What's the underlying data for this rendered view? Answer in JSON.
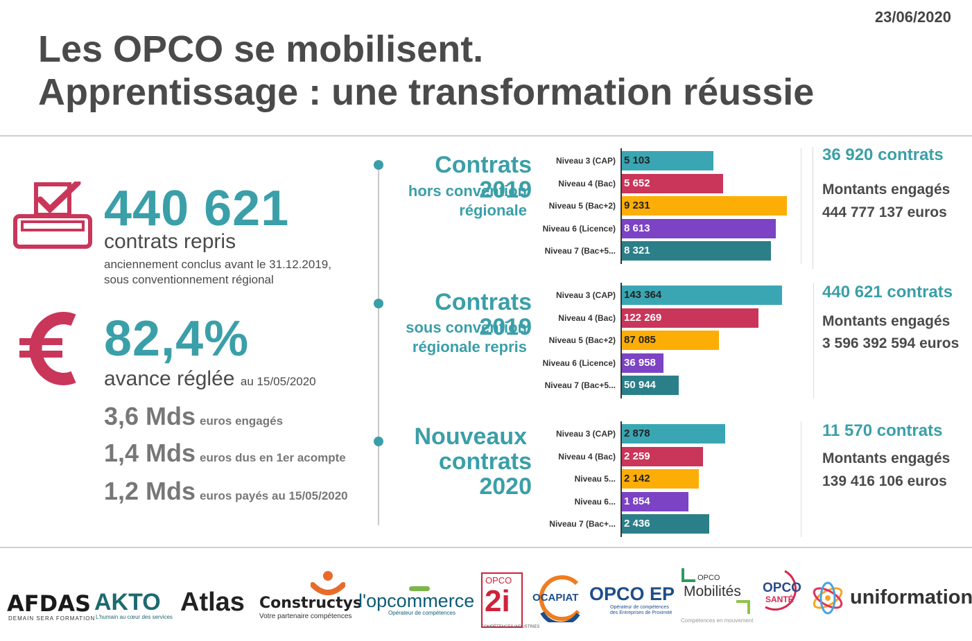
{
  "date": "23/06/2020",
  "title_line1": "Les OPCO se mobilisent.",
  "title_line2": "Apprentissage : une transformation réussie",
  "kpis": {
    "contracts_value": "440 621",
    "contracts_label": "contrats repris",
    "contracts_note1": "anciennement conclus avant le 31.12.2019,",
    "contracts_note2": "sous conventionnement régional",
    "advance_value": "82,4%",
    "advance_label": "avance réglée",
    "advance_date": "au 15/05/2020",
    "mds": [
      {
        "value": "3,6 Mds",
        "label": "euros engagés"
      },
      {
        "value": "1,4 Mds",
        "label": "euros dus en 1er acompte"
      },
      {
        "value": "1,2 Mds",
        "label": "euros payés au 15/05/2020"
      }
    ]
  },
  "sections": [
    {
      "head": "Contrats 2019",
      "sub1": "hors convention",
      "sub2": "régionale"
    },
    {
      "head": "Contrats 2019",
      "sub1": "sous convention",
      "sub2": "régionale repris"
    },
    {
      "head1": "Nouveaux",
      "head2": "contrats 2020"
    }
  ],
  "stats": [
    {
      "count": "36 920 contrats",
      "label": "Montants engagés",
      "amount": "444 777 137 euros"
    },
    {
      "count": "440 621 contrats",
      "label": "Montants engagés",
      "amount": "3 596 392 594 euros"
    },
    {
      "count": "11 570 contrats",
      "label": "Montants engagés",
      "amount": "139 416 106 euros"
    }
  ],
  "colors": {
    "teal": "#3aa6b3",
    "red": "#c9365a",
    "orange": "#fdae06",
    "purple": "#7c43c4",
    "darkteal": "#2b7f89"
  },
  "chart_data": [
    {
      "type": "bar",
      "orientation": "horizontal",
      "categories": [
        "Niveau 3 (CAP)",
        "Niveau 4 (Bac)",
        "Niveau 5 (Bac+2)",
        "Niveau 6 (Licence)",
        "Niveau 7 (Bac+5..."
      ],
      "values": [
        5103,
        5652,
        9231,
        8613,
        8321
      ],
      "value_labels": [
        "5 103",
        "5 652",
        "9 231",
        "8 613",
        "8 321"
      ],
      "xlim": [
        0,
        10000
      ]
    },
    {
      "type": "bar",
      "orientation": "horizontal",
      "categories": [
        "Niveau 3 (CAP)",
        "Niveau 4 (Bac)",
        "Niveau 5 (Bac+2)",
        "Niveau 6 (Licence)",
        "Niveau 7 (Bac+5..."
      ],
      "values": [
        143364,
        122269,
        87085,
        36958,
        50944
      ],
      "value_labels": [
        "143 364",
        "122 269",
        "87 085",
        "36 958",
        "50 944"
      ],
      "xlim": [
        0,
        160000
      ]
    },
    {
      "type": "bar",
      "orientation": "horizontal",
      "categories": [
        "Niveau 3 (CAP)",
        "Niveau 4 (Bac)",
        "Niveau 5...",
        "Niveau 6...",
        "Niveau 7 (Bac+..."
      ],
      "values": [
        2878,
        2259,
        2142,
        1854,
        2436
      ],
      "value_labels": [
        "2 878",
        "2 259",
        "2 142",
        "1 854",
        "2 436"
      ],
      "xlim": [
        0,
        5000
      ]
    }
  ],
  "logos": {
    "afdas": "AFDAS",
    "afdas_tag": "DEMAIN SERA FORMATION",
    "akto": "AKTO",
    "akto_tag": "L'humain au cœur des services",
    "atlas": "Atlas",
    "constructys": "Constructys",
    "constructys_tag": "Votre partenaire compétences",
    "opcommerce": "l'opcommerce",
    "opcommerce_tag": "Opérateur de compétences",
    "opco2i_top": "OPCO",
    "opco2i": "2i",
    "opco2i_tag": "COMPÉTENCES INDUSTRIES",
    "ocapiat": "OCAPIAT",
    "opcoep": "OPCO EP",
    "opcoep_tag": "Opérateur de compétences des Entreprises de Proximité",
    "mobilites_top": "OPCO",
    "mobilites": "Mobilités",
    "mobilites_tag": "Compétences en mouvement",
    "sante_top": "OPCO",
    "sante": "SANTÉ",
    "uniformation": "uniformation"
  }
}
